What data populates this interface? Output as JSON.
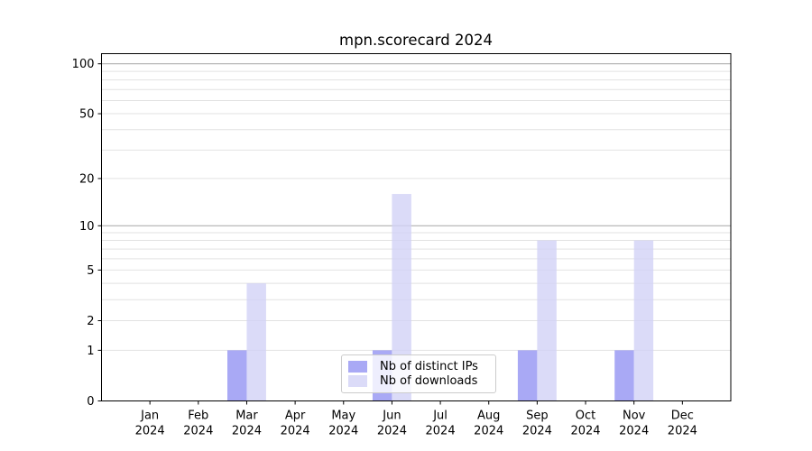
{
  "chart_data": {
    "type": "bar",
    "title": "mpn.scorecard 2024",
    "xlabel": "",
    "ylabel": "",
    "x_categories": [
      "Jan",
      "Feb",
      "Mar",
      "Apr",
      "May",
      "Jun",
      "Jul",
      "Aug",
      "Sep",
      "Oct",
      "Nov",
      "Dec"
    ],
    "x_year": "2024",
    "series": [
      {
        "name": "Nb of distinct IPs",
        "color": "#a9a9f5",
        "values": [
          0,
          0,
          1,
          0,
          0,
          1,
          0,
          0,
          1,
          0,
          1,
          0
        ]
      },
      {
        "name": "Nb of downloads",
        "color": "#dbdbf8",
        "values": [
          0,
          0,
          4,
          0,
          0,
          16,
          0,
          0,
          8,
          0,
          8,
          0
        ]
      }
    ],
    "y_scale": "log1p",
    "y_ticks": [
      0,
      1,
      2,
      5,
      10,
      20,
      50,
      100
    ],
    "ylim": [
      0,
      115
    ],
    "grid": {
      "minor_values": [
        1,
        2,
        3,
        4,
        5,
        6,
        7,
        8,
        9,
        20,
        30,
        40,
        50,
        60,
        70,
        80,
        90
      ],
      "major_values": [
        10,
        100
      ],
      "minor_color": "#e2e2e2",
      "major_color": "#b0b0b0"
    },
    "legend_position": "bottom-center",
    "colors": {
      "background": "#ffffff",
      "axis": "#000000",
      "text": "#000000"
    }
  }
}
